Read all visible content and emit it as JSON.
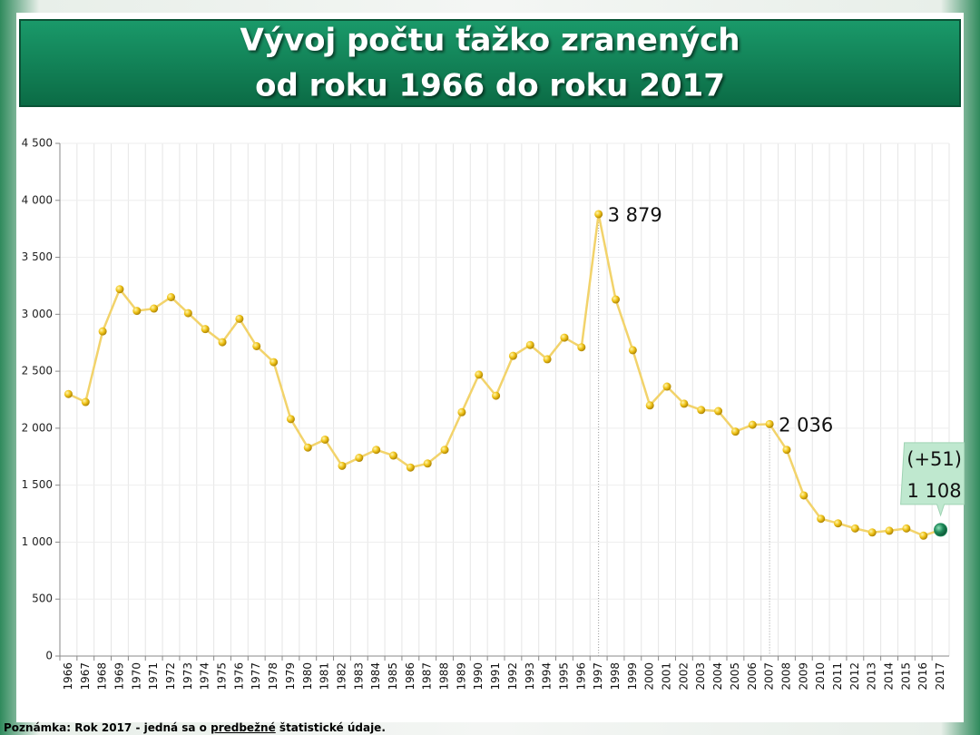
{
  "chart_data": {
    "type": "line",
    "title": [
      "Vývoj počtu ťažko zranených",
      "od roku 1966 do roku 2017"
    ],
    "categories": [
      "1966",
      "1967",
      "1968",
      "1969",
      "1970",
      "1971",
      "1972",
      "1973",
      "1974",
      "1975",
      "1976",
      "1977",
      "1978",
      "1979",
      "1980",
      "1981",
      "1982",
      "1983",
      "1984",
      "1985",
      "1986",
      "1987",
      "1988",
      "1989",
      "1990",
      "1991",
      "1992",
      "1993",
      "1994",
      "1995",
      "1996",
      "1997",
      "1998",
      "1999",
      "2000",
      "2001",
      "2002",
      "2003",
      "2004",
      "2005",
      "2006",
      "2007",
      "2008",
      "2009",
      "2010",
      "2011",
      "2012",
      "2013",
      "2014",
      "2015",
      "2016",
      "2017"
    ],
    "values": [
      2300,
      2230,
      2850,
      3220,
      3030,
      3050,
      3150,
      3010,
      2870,
      2755,
      2960,
      2720,
      2580,
      2080,
      1830,
      1900,
      1670,
      1740,
      1810,
      1760,
      1655,
      1690,
      1810,
      2140,
      2470,
      2285,
      2635,
      2730,
      2605,
      2795,
      2710,
      3879,
      3130,
      2685,
      2200,
      2365,
      2215,
      2160,
      2150,
      1970,
      2030,
      2036,
      1810,
      1410,
      1205,
      1165,
      1120,
      1085,
      1100,
      1120,
      1057,
      1108
    ],
    "value_labels": [
      null,
      null,
      null,
      null,
      null,
      null,
      null,
      null,
      null,
      null,
      null,
      null,
      null,
      null,
      null,
      null,
      null,
      null,
      null,
      null,
      null,
      null,
      null,
      null,
      null,
      null,
      null,
      null,
      null,
      null,
      null,
      "3 879",
      null,
      null,
      null,
      null,
      null,
      null,
      null,
      null,
      null,
      "2 036",
      null,
      null,
      null,
      null,
      null,
      null,
      null,
      null,
      null,
      "1 108"
    ],
    "change_label": "(+51)",
    "color": "#f2d36b",
    "highlight_color": "#1f8a5a",
    "ylim": [
      0,
      4500
    ],
    "yticks": [
      0,
      500,
      {
        "value": 1000,
        "label": "1 000"
      },
      {
        "value": 1500,
        "label": "1 500"
      },
      {
        "value": 2000,
        "label": "2 000"
      },
      {
        "value": 2500,
        "label": "2 500"
      },
      {
        "value": 3000,
        "label": "3 000"
      },
      {
        "value": 3500,
        "label": "3 500"
      },
      {
        "value": 4000,
        "label": "4 000"
      },
      {
        "value": 4500,
        "label": "4 500"
      }
    ],
    "grid": true
  },
  "note": {
    "before": "Poznámka: Rok 2017 - jedná sa o ",
    "underlined": "predbežné",
    "after": " štatistické údaje."
  }
}
